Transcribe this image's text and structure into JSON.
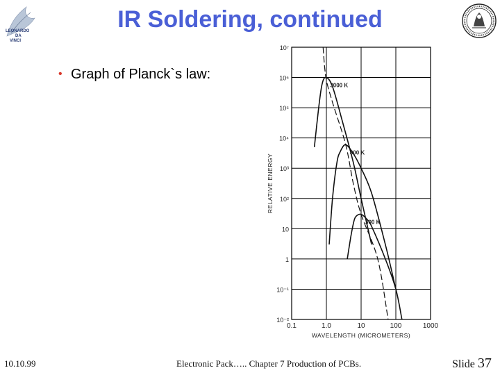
{
  "slide": {
    "title": "IR Soldering, continued",
    "bullet": "Graph of Planck`s law:",
    "footer_date": "10.10.99",
    "footer_center": "Electronic Pack….. Chapter 7 Production of PCBs.",
    "footer_slide_label": "Slide",
    "footer_slide_number": "37"
  },
  "logos": {
    "left_text": [
      "LEONARDO",
      "DA",
      "VINCI"
    ]
  },
  "chart_data": {
    "type": "line",
    "xlabel": "WAVELENGTH (MICROMETERS)",
    "ylabel": "RELATIVE ENERGY",
    "x_scale": "log",
    "y_scale": "log",
    "xlim": [
      0.1,
      1000
    ],
    "ylim": [
      0.01,
      10000000
    ],
    "x_ticks": [
      "0.1",
      "1.0",
      "10",
      "100",
      "1000"
    ],
    "y_ticks": [
      "10⁻²",
      "10⁻¹",
      "1",
      "10",
      "10²",
      "10³",
      "10⁴",
      "10⁵",
      "10⁶",
      "10⁷"
    ],
    "series": [
      {
        "name": "3000 K",
        "x": [
          0.45,
          0.6,
          0.75,
          0.97,
          1.5,
          3,
          6,
          10,
          20
        ],
        "y": [
          5000,
          100000,
          600000,
          1000000,
          500000,
          30000,
          1500,
          100,
          3
        ]
      },
      {
        "name": "800 K",
        "x": [
          1.2,
          1.5,
          2,
          2.5,
          3.6,
          6,
          10,
          20,
          50,
          100
        ],
        "y": [
          3,
          100,
          1500,
          3500,
          6000,
          3000,
          1000,
          150,
          3,
          0.1
        ]
      },
      {
        "name": "300 K",
        "x": [
          4,
          5,
          6,
          7,
          10,
          15,
          20,
          50,
          100,
          150
        ],
        "y": [
          1,
          5,
          15,
          25,
          30,
          20,
          12,
          1,
          0.1,
          0.01
        ]
      },
      {
        "name": "",
        "style": "dashed",
        "x": [
          0.8,
          0.97,
          1.5,
          3.6,
          6,
          10,
          30,
          60
        ],
        "y": [
          10000000,
          1000000,
          150000,
          6000,
          300,
          30,
          1,
          0.01
        ]
      }
    ]
  }
}
